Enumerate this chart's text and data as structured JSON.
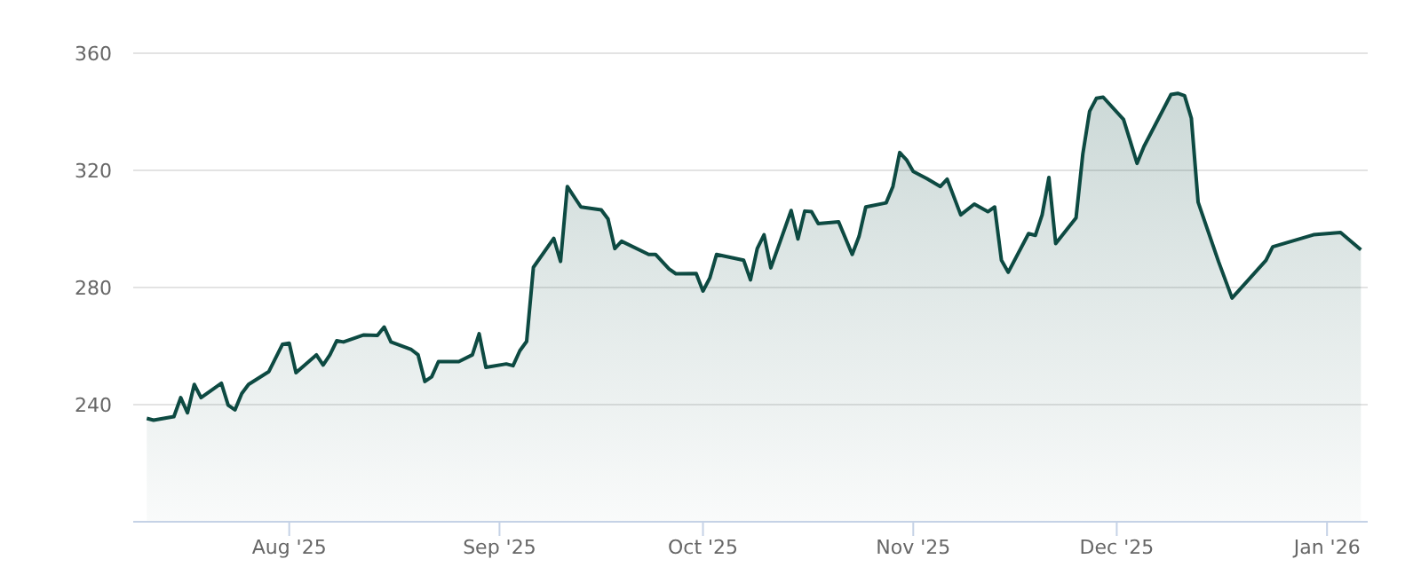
{
  "chart_data": {
    "type": "area",
    "color": "#0d4a42",
    "x": [
      "2025-07-11",
      "2025-07-12",
      "2025-07-15",
      "2025-07-16",
      "2025-07-17",
      "2025-07-18",
      "2025-07-19",
      "2025-07-22",
      "2025-07-23",
      "2025-07-24",
      "2025-07-25",
      "2025-07-26",
      "2025-07-29",
      "2025-07-31",
      "2025-08-01",
      "2025-08-02",
      "2025-08-05",
      "2025-08-06",
      "2025-08-07",
      "2025-08-08",
      "2025-08-09",
      "2025-08-12",
      "2025-08-14",
      "2025-08-15",
      "2025-08-16",
      "2025-08-19",
      "2025-08-20",
      "2025-08-21",
      "2025-08-22",
      "2025-08-23",
      "2025-08-26",
      "2025-08-28",
      "2025-08-29",
      "2025-08-30",
      "2025-09-02",
      "2025-09-03",
      "2025-09-04",
      "2025-09-05",
      "2025-09-06",
      "2025-09-09",
      "2025-09-10",
      "2025-09-11",
      "2025-09-13",
      "2025-09-16",
      "2025-09-17",
      "2025-09-18",
      "2025-09-19",
      "2025-09-23",
      "2025-09-24",
      "2025-09-26",
      "2025-09-27",
      "2025-09-30",
      "2025-10-01",
      "2025-10-02",
      "2025-10-03",
      "2025-10-07",
      "2025-10-08",
      "2025-10-09",
      "2025-10-10",
      "2025-10-11",
      "2025-10-14",
      "2025-10-15",
      "2025-10-16",
      "2025-10-17",
      "2025-10-18",
      "2025-10-21",
      "2025-10-23",
      "2025-10-24",
      "2025-10-25",
      "2025-10-28",
      "2025-10-29",
      "2025-10-30",
      "2025-10-31",
      "2025-11-01",
      "2025-11-03",
      "2025-11-05",
      "2025-11-06",
      "2025-11-08",
      "2025-11-10",
      "2025-11-12",
      "2025-11-13",
      "2025-11-14",
      "2025-11-15",
      "2025-11-18",
      "2025-11-19",
      "2025-11-20",
      "2025-11-21",
      "2025-11-22",
      "2025-11-25",
      "2025-11-26",
      "2025-11-27",
      "2025-11-28",
      "2025-11-29",
      "2025-12-02",
      "2025-12-04",
      "2025-12-05",
      "2025-12-09",
      "2025-12-10",
      "2025-12-11",
      "2025-12-12",
      "2025-12-13",
      "2025-12-16",
      "2025-12-18",
      "2025-12-23",
      "2025-12-24",
      "2025-12-30",
      "2026-01-03",
      "2026-01-06"
    ],
    "values": [
      235.3,
      234.7,
      235.9,
      242.4,
      237.2,
      246.9,
      242.4,
      247.3,
      239.8,
      238.2,
      243.8,
      246.9,
      251.3,
      260.6,
      261.0,
      250.9,
      257.0,
      253.5,
      257.0,
      261.8,
      261.4,
      263.8,
      263.6,
      266.5,
      261.4,
      258.8,
      257.0,
      247.9,
      249.5,
      254.7,
      254.7,
      257.0,
      264.2,
      252.7,
      253.9,
      253.3,
      258.4,
      261.6,
      286.9,
      296.8,
      288.9,
      314.5,
      307.5,
      306.5,
      303.4,
      293.3,
      295.8,
      291.3,
      291.3,
      286.3,
      284.7,
      284.8,
      278.8,
      283.2,
      291.3,
      289.3,
      282.6,
      293.3,
      298.0,
      286.7,
      306.3,
      296.6,
      306.1,
      305.9,
      301.8,
      302.4,
      291.3,
      297.4,
      307.5,
      308.9,
      314.5,
      326.1,
      323.6,
      319.6,
      317.2,
      314.5,
      317.0,
      304.8,
      308.5,
      305.9,
      307.5,
      289.3,
      285.2,
      298.4,
      297.8,
      304.8,
      317.6,
      295.0,
      303.8,
      325.6,
      340.2,
      344.6,
      345.0,
      337.4,
      322.4,
      328.1,
      345.9,
      346.3,
      345.5,
      337.8,
      309.1,
      288.9,
      276.4,
      289.3,
      293.9,
      298.0,
      298.8,
      292.9
    ],
    "xlim": [
      "2025-07-09",
      "2026-01-07"
    ],
    "xticks": [
      {
        "value": "2025-08-01",
        "label": "Aug '25"
      },
      {
        "value": "2025-09-01",
        "label": "Sep '25"
      },
      {
        "value": "2025-10-01",
        "label": "Oct '25"
      },
      {
        "value": "2025-11-01",
        "label": "Nov '25"
      },
      {
        "value": "2025-12-01",
        "label": "Dec '25"
      },
      {
        "value": "2026-01-01",
        "label": "Jan '26"
      }
    ],
    "ylim": [
      200,
      360
    ],
    "yticks": [
      240,
      280,
      320,
      360
    ],
    "grid": "y"
  }
}
